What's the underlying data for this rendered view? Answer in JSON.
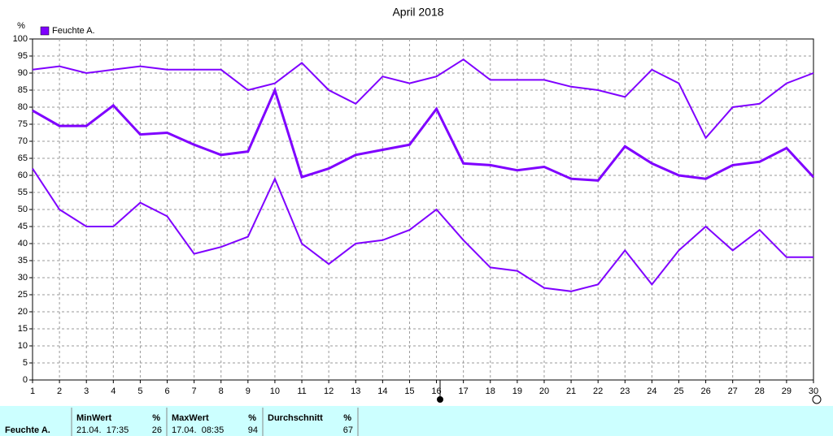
{
  "chart_data": {
    "type": "line",
    "title": "April 2018",
    "y_label": "%",
    "x": [
      1,
      2,
      3,
      4,
      5,
      6,
      7,
      8,
      9,
      10,
      11,
      12,
      13,
      14,
      15,
      16,
      17,
      18,
      19,
      20,
      21,
      22,
      23,
      24,
      25,
      26,
      27,
      28,
      29,
      30
    ],
    "xlim": [
      1,
      30
    ],
    "xticks": [
      1,
      2,
      3,
      4,
      5,
      6,
      7,
      8,
      9,
      10,
      11,
      12,
      13,
      14,
      15,
      16,
      17,
      18,
      19,
      20,
      21,
      22,
      23,
      24,
      25,
      26,
      27,
      28,
      29,
      30
    ],
    "ylim": [
      0,
      100
    ],
    "yticks": [
      0,
      5,
      10,
      15,
      20,
      25,
      30,
      35,
      40,
      45,
      50,
      55,
      60,
      65,
      70,
      75,
      80,
      85,
      90,
      95,
      100
    ],
    "grid": true,
    "series": [
      {
        "name": "Feuchte A.",
        "color": "#7f00ff",
        "values": [
          79,
          74.5,
          74.5,
          80.5,
          72,
          72.5,
          69,
          66,
          67,
          85,
          59.5,
          62,
          66,
          67.5,
          69,
          79.5,
          63.5,
          63,
          61.5,
          62.5,
          59,
          58.5,
          68.5,
          63.5,
          60,
          59,
          63,
          64,
          68,
          59.5
        ]
      },
      {
        "color": "#7f00ff",
        "values": [
          91,
          92,
          90,
          91,
          92,
          91,
          91,
          91,
          85,
          87,
          93,
          85,
          81,
          89,
          87,
          89,
          94,
          88,
          88,
          88,
          86,
          85,
          83,
          91,
          87,
          71,
          80,
          81,
          87,
          90
        ]
      },
      {
        "color": "#7f00ff",
        "values": [
          62,
          50,
          45,
          45,
          52,
          48,
          37,
          39,
          42,
          59,
          40,
          34,
          40,
          41,
          44,
          50,
          41,
          33,
          32,
          27,
          26,
          28,
          38,
          28,
          38,
          45,
          38,
          44,
          36,
          36
        ]
      }
    ]
  },
  "table": {
    "row_label": "Feuchte A.",
    "cells": [
      {
        "header": "MinWert",
        "unit": "%",
        "time": "21.04.  17:35",
        "value": 26
      },
      {
        "header": "MaxWert",
        "unit": "%",
        "time": "17.04.  08:35",
        "value": 94
      },
      {
        "header": "Durchschnitt",
        "unit": "%",
        "value": 67
      }
    ]
  }
}
